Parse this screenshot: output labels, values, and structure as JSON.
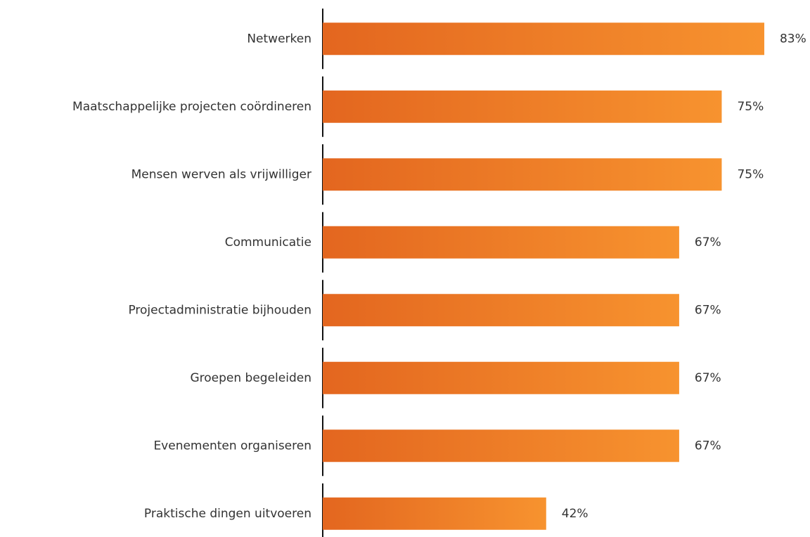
{
  "chart_data": {
    "type": "barh",
    "categories": [
      "Netwerken",
      "Maatschappelijke projecten coördineren",
      "Mensen werven als vrijwilliger",
      "Communicatie",
      "Projectadministratie bijhouden",
      "Groepen begeleiden",
      "Evenementen organiseren",
      "Praktische dingen uitvoeren"
    ],
    "values": [
      83,
      75,
      75,
      67,
      67,
      67,
      67,
      42
    ],
    "value_labels": [
      "83%",
      "75%",
      "75%",
      "67%",
      "67%",
      "67%",
      "67%",
      "42%"
    ],
    "color": "#ef7d2a",
    "xlim": [
      0,
      100
    ]
  }
}
